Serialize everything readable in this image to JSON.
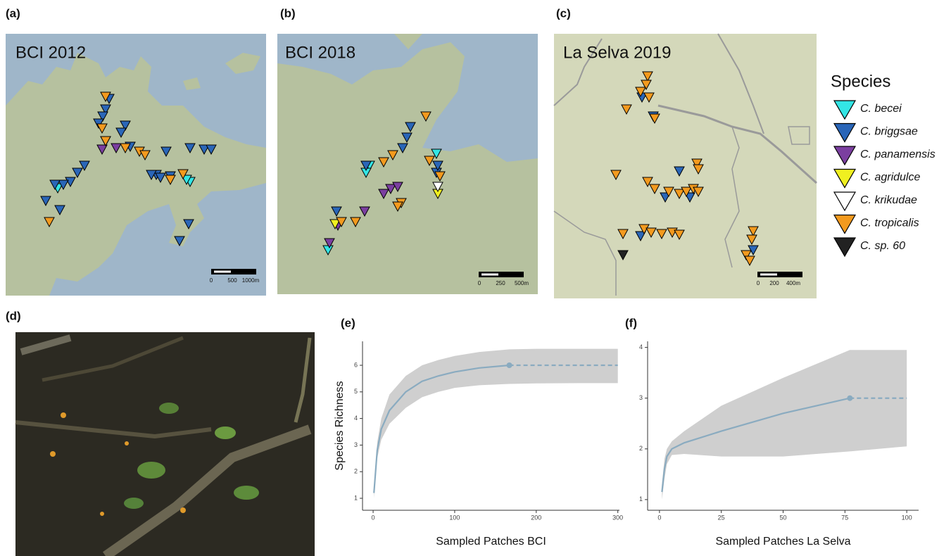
{
  "panels": {
    "a": {
      "label": "(a)",
      "title": "BCI 2012",
      "scale_labels": [
        "0",
        "500",
        "1000m"
      ]
    },
    "b": {
      "label": "(b)",
      "title": "BCI 2018",
      "scale_labels": [
        "0",
        "250",
        "500m"
      ]
    },
    "c": {
      "label": "(c)",
      "title": "La Selva 2019",
      "scale_labels": [
        "0",
        "200",
        "400m"
      ]
    },
    "d": {
      "label": "(d)"
    }
  },
  "legend": {
    "title": "Species",
    "items": [
      {
        "name": "C. becei",
        "color": "#33e5e5"
      },
      {
        "name": "C. briggsae",
        "color": "#2a66b8"
      },
      {
        "name": "C. panamensis",
        "color": "#7b3fa0"
      },
      {
        "name": "C. agridulce",
        "color": "#f0f020"
      },
      {
        "name": "C. krikudae",
        "color": "#ffffff"
      },
      {
        "name": "C. tropicalis",
        "color": "#f39a1e"
      },
      {
        "name": "C. sp. 60",
        "color": "#222222"
      }
    ]
  },
  "chart_data": [
    {
      "type": "line",
      "label": "(e)",
      "ylabel": "Species Richness",
      "xlabel": "Sampled Patches BCI",
      "color": "#8aabc0",
      "band_color": "#cfcfcf",
      "x": [
        1,
        5,
        10,
        20,
        40,
        60,
        80,
        100,
        130,
        167,
        200,
        250,
        300
      ],
      "values": [
        1.2,
        2.8,
        3.6,
        4.3,
        5.0,
        5.4,
        5.6,
        5.75,
        5.9,
        6.0,
        null,
        null,
        null
      ],
      "extrapolation": [
        null,
        null,
        null,
        null,
        null,
        null,
        null,
        null,
        null,
        6.0,
        6.0,
        6.0,
        6.0
      ],
      "lower": [
        1.0,
        2.5,
        3.2,
        3.8,
        4.4,
        4.8,
        5.0,
        5.15,
        5.25,
        5.3,
        5.32,
        5.33,
        5.33
      ],
      "upper": [
        1.4,
        3.1,
        4.0,
        4.9,
        5.6,
        6.0,
        6.2,
        6.35,
        6.5,
        6.6,
        6.62,
        6.62,
        6.62
      ],
      "xlim": [
        -13,
        302
      ],
      "ylim": [
        0.55,
        6.9
      ],
      "xticks": [
        0,
        100,
        200,
        300
      ],
      "yticks": [
        1,
        2,
        3,
        4,
        5,
        6
      ]
    },
    {
      "type": "line",
      "label": "(f)",
      "xlabel": "Sampled Patches La Selva",
      "color": "#8aabc0",
      "band_color": "#cfcfcf",
      "x": [
        1,
        2,
        3,
        5,
        10,
        25,
        50,
        77,
        100
      ],
      "values": [
        1.15,
        1.6,
        1.85,
        2.0,
        2.12,
        2.35,
        2.7,
        3.0,
        null
      ],
      "extrapolation": [
        null,
        null,
        null,
        null,
        null,
        null,
        null,
        3.0,
        3.0
      ],
      "lower": [
        1.0,
        1.4,
        1.7,
        1.88,
        1.9,
        1.85,
        1.85,
        1.95,
        2.05
      ],
      "upper": [
        1.3,
        1.8,
        2.0,
        2.15,
        2.35,
        2.85,
        3.4,
        3.95,
        3.95
      ],
      "xlim": [
        -4.8,
        104.8
      ],
      "ylim": [
        0.79,
        4.12
      ],
      "xticks": [
        0,
        25,
        50,
        75,
        100
      ],
      "yticks": [
        1,
        2,
        3,
        4
      ]
    }
  ]
}
